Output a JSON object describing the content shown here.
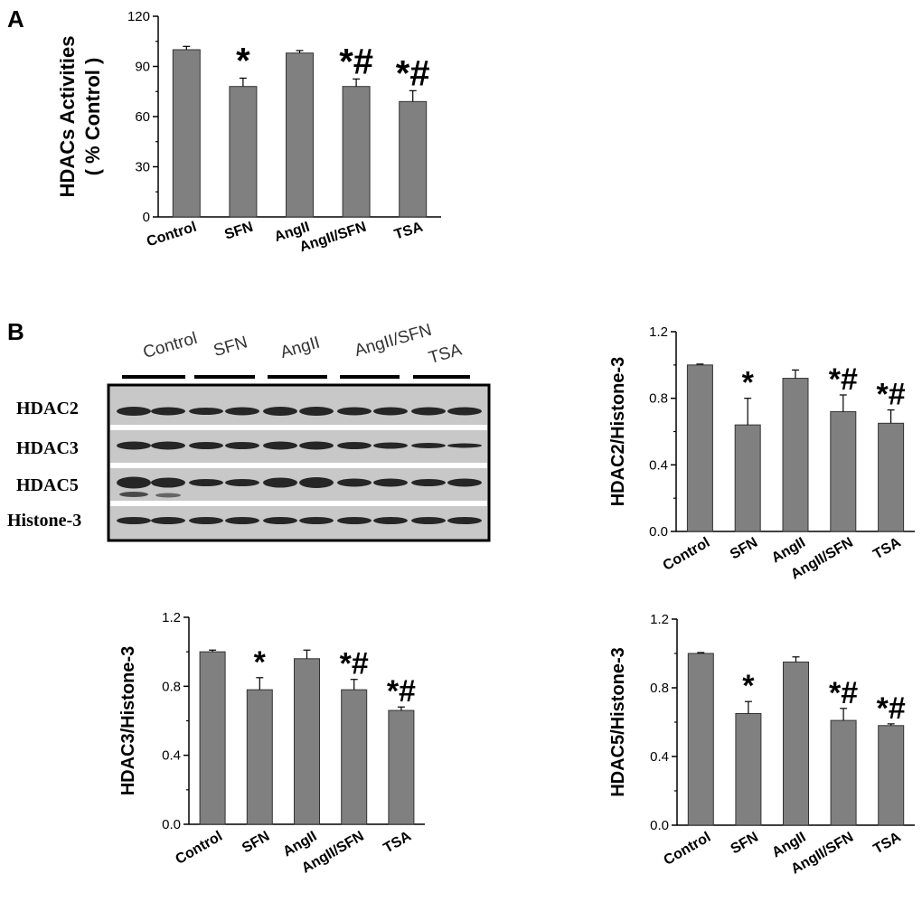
{
  "figure": {
    "panel_a": "A",
    "panel_b": "B"
  },
  "blot": {
    "group_labels": [
      "Control",
      "SFN",
      "AngII",
      "AngII/SFN",
      "TSA"
    ],
    "row_labels": [
      "HDAC2",
      "HDAC3",
      "HDAC5",
      "Histone-3"
    ],
    "colors": {
      "bar_fill": "#808080",
      "band": "#141414",
      "membrane": "#c8c8c8"
    }
  },
  "chart_data": [
    {
      "type": "bar",
      "id": "hdac_activity",
      "title": "",
      "ylabel": "HDACs Activities\n( % Control )",
      "categories": [
        "Control",
        "SFN",
        "AngII",
        "AngII/SFN",
        "TSA"
      ],
      "values": [
        100,
        78,
        98,
        78,
        69
      ],
      "errors": [
        2,
        5,
        1.5,
        4.5,
        6.5
      ],
      "annotations": [
        "",
        "*",
        "",
        "*#",
        "*#"
      ],
      "ylim": [
        0,
        120
      ],
      "yticks": [
        "0",
        "30",
        "60",
        "90",
        "120"
      ]
    },
    {
      "type": "bar",
      "id": "hdac2_ratio",
      "ylabel": "HDAC2/Histone-3",
      "categories": [
        "Control",
        "SFN",
        "AngII",
        "AngII/SFN",
        "TSA"
      ],
      "values": [
        1.0,
        0.64,
        0.92,
        0.72,
        0.65
      ],
      "errors": [
        0.0,
        0.16,
        0.05,
        0.1,
        0.08
      ],
      "annotations": [
        "",
        "*",
        "",
        "*#",
        "*#"
      ],
      "ylim": [
        0,
        1.2
      ],
      "yticks": [
        "0.0",
        "0.4",
        "0.8",
        "1.2"
      ]
    },
    {
      "type": "bar",
      "id": "hdac3_ratio",
      "ylabel": "HDAC3/Histone-3",
      "categories": [
        "Control",
        "SFN",
        "AngII",
        "AngII/SFN",
        "TSA"
      ],
      "values": [
        1.0,
        0.78,
        0.96,
        0.78,
        0.66
      ],
      "errors": [
        0.01,
        0.07,
        0.05,
        0.06,
        0.02
      ],
      "annotations": [
        "",
        "*",
        "",
        "*#",
        "*#"
      ],
      "ylim": [
        0,
        1.2
      ],
      "yticks": [
        "0.0",
        "0.4",
        "0.8",
        "1.2"
      ]
    },
    {
      "type": "bar",
      "id": "hdac5_ratio",
      "ylabel": "HDAC5/Histone-3",
      "categories": [
        "Control",
        "SFN",
        "AngII",
        "AngII/SFN",
        "TSA"
      ],
      "values": [
        1.0,
        0.65,
        0.95,
        0.61,
        0.58
      ],
      "errors": [
        0.0,
        0.07,
        0.03,
        0.07,
        0.01
      ],
      "annotations": [
        "",
        "*",
        "",
        "*#",
        "*#"
      ],
      "ylim": [
        0,
        1.2
      ],
      "yticks": [
        "0.0",
        "0.4",
        "0.8",
        "1.2"
      ]
    }
  ]
}
